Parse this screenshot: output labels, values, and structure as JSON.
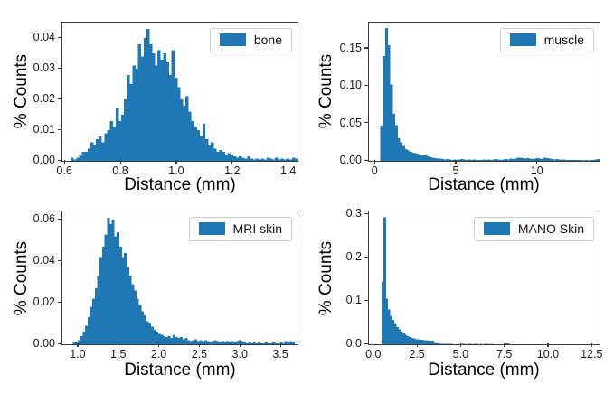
{
  "figure": {
    "background": "#ffffff",
    "bar_color": "#1f77b4",
    "layout": "2x2 histogram grid"
  },
  "chart_data": [
    {
      "type": "bar",
      "subtype": "histogram",
      "legend": "bone",
      "legend_position": "upper-right",
      "xlabel": "Distance (mm)",
      "ylabel": "% Counts",
      "grid": false,
      "xlim": [
        0.59,
        1.43
      ],
      "ylim": [
        0,
        0.045
      ],
      "xticks": [
        0.6,
        0.8,
        1.0,
        1.2,
        1.4
      ],
      "xtick_labels": [
        "0.6",
        "0.8",
        "1.0",
        "1.2",
        "1.4"
      ],
      "yticks": [
        0,
        0.01,
        0.02,
        0.03,
        0.04
      ],
      "ytick_labels": [
        "0.00",
        "0.01",
        "0.02",
        "0.03",
        "0.04"
      ],
      "bar_color": "#1f77b4",
      "bins": {
        "start": 0.62,
        "width": 0.01
      },
      "values": [
        0.001,
        0.0005,
        0.001,
        0.002,
        0.003,
        0.003,
        0.004,
        0.006,
        0.005,
        0.007,
        0.008,
        0.006,
        0.009,
        0.01,
        0.013,
        0.011,
        0.017,
        0.013,
        0.015,
        0.02,
        0.028,
        0.025,
        0.031,
        0.03,
        0.038,
        0.034,
        0.04,
        0.043,
        0.038,
        0.035,
        0.031,
        0.036,
        0.033,
        0.035,
        0.032,
        0.028,
        0.036,
        0.027,
        0.024,
        0.02,
        0.018,
        0.021,
        0.016,
        0.013,
        0.011,
        0.01,
        0.008,
        0.012,
        0.007,
        0.005,
        0.006,
        0.004,
        0.003,
        0.0035,
        0.003,
        0.002,
        0.0025,
        0.002,
        0.0015,
        0.001,
        0.0015,
        0.001,
        0.0008,
        0.0015,
        0.0008,
        0.0005,
        0.0008,
        0.0005,
        0.0008,
        0.0005,
        0.001,
        0.0008,
        0.0005,
        0.001,
        0.0005,
        0.0008,
        0.0005,
        0.0008,
        0.0005,
        0.001,
        0.0008
      ]
    },
    {
      "type": "bar",
      "subtype": "histogram",
      "legend": "muscle",
      "legend_position": "upper-right",
      "xlabel": "Distance (mm)",
      "ylabel": "% Counts",
      "grid": false,
      "xlim": [
        -0.4,
        13.8
      ],
      "ylim": [
        0,
        0.185
      ],
      "xticks": [
        0,
        5,
        10
      ],
      "xtick_labels": [
        "0",
        "5",
        "10"
      ],
      "yticks": [
        0,
        0.05,
        0.1,
        0.15
      ],
      "ytick_labels": [
        "0.00",
        "0.05",
        "0.10",
        "0.15"
      ],
      "bar_color": "#1f77b4",
      "bins": {
        "start": 0.3,
        "width": 0.15
      },
      "values": [
        0.047,
        0.14,
        0.178,
        0.155,
        0.102,
        0.063,
        0.048,
        0.03,
        0.025,
        0.02,
        0.016,
        0.014,
        0.012,
        0.011,
        0.01,
        0.009,
        0.008,
        0.0075,
        0.007,
        0.006,
        0.005,
        0.004,
        0.0035,
        0.003,
        0.003,
        0.0025,
        0.002,
        0.0025,
        0.002,
        0.0015,
        0.002,
        0.0015,
        0.002,
        0.0025,
        0.002,
        0.0015,
        0.002,
        0.0015,
        0.002,
        0.0015,
        0.001,
        0.0015,
        0.002,
        0.0015,
        0.002,
        0.0015,
        0.002,
        0.0025,
        0.002,
        0.0015,
        0.002,
        0.0025,
        0.002,
        0.003,
        0.0025,
        0.003,
        0.004,
        0.0045,
        0.0035,
        0.003,
        0.0035,
        0.003,
        0.0025,
        0.003,
        0.0035,
        0.003,
        0.0025,
        0.004,
        0.0035,
        0.003,
        0.0025,
        0.002,
        0.0025,
        0.002,
        0.0015,
        0.002,
        0.0015,
        0.001,
        0.0015,
        0.001,
        0.001,
        0.0015,
        0.001,
        0.0005,
        0.001,
        0.0005,
        0.001,
        0.0015,
        0.002,
        0.0025
      ]
    },
    {
      "type": "bar",
      "subtype": "histogram",
      "legend": "MRI skin",
      "legend_position": "upper-right",
      "xlabel": "Distance (mm)",
      "ylabel": "% Counts",
      "grid": false,
      "xlim": [
        0.8,
        3.7
      ],
      "ylim": [
        0,
        0.064
      ],
      "xticks": [
        1.0,
        1.5,
        2.0,
        2.5,
        3.0,
        3.5
      ],
      "xtick_labels": [
        "1.0",
        "1.5",
        "2.0",
        "2.5",
        "3.0",
        "3.5"
      ],
      "yticks": [
        0,
        0.02,
        0.04,
        0.06
      ],
      "ytick_labels": [
        "0.00",
        "0.02",
        "0.04",
        "0.06"
      ],
      "bar_color": "#1f77b4",
      "bins": {
        "start": 0.93,
        "width": 0.03
      },
      "values": [
        0.001,
        0.001,
        0.002,
        0.004,
        0.006,
        0.009,
        0.013,
        0.018,
        0.022,
        0.027,
        0.033,
        0.042,
        0.047,
        0.053,
        0.061,
        0.058,
        0.06,
        0.052,
        0.054,
        0.047,
        0.042,
        0.044,
        0.037,
        0.033,
        0.029,
        0.026,
        0.022,
        0.019,
        0.016,
        0.014,
        0.011,
        0.01,
        0.0085,
        0.007,
        0.006,
        0.005,
        0.0045,
        0.004,
        0.0035,
        0.004,
        0.003,
        0.0045,
        0.0035,
        0.003,
        0.0035,
        0.0025,
        0.003,
        0.002,
        0.0015,
        0.002,
        0.0025,
        0.0015,
        0.002,
        0.0015,
        0.002,
        0.0015,
        0.001,
        0.0015,
        0.002,
        0.0015,
        0.001,
        0.0015,
        0.001,
        0.0015,
        0.001,
        0.0015,
        0.001,
        0.0015,
        0.002,
        0.0015,
        0.001,
        0.0005,
        0.001,
        0.0005,
        0.001,
        0.0005,
        0.001,
        0.0005,
        0.0005,
        0.001,
        0.0005,
        0.0005,
        0.001,
        0.0005,
        0.0005,
        0.001,
        0.0005,
        0.0015,
        0.001,
        0.0015,
        0.001
      ]
    },
    {
      "type": "bar",
      "subtype": "histogram",
      "legend": "MANO Skin",
      "legend_position": "upper-right",
      "xlabel": "Distance (mm)",
      "ylabel": "% Counts",
      "grid": false,
      "xlim": [
        -0.3,
        12.9
      ],
      "ylim": [
        0,
        0.307
      ],
      "xticks": [
        0.0,
        2.5,
        5.0,
        7.5,
        10.0,
        12.5
      ],
      "xtick_labels": [
        "0.0",
        "2.5",
        "5.0",
        "7.5",
        "10.0",
        "12.5"
      ],
      "yticks": [
        0,
        0.1,
        0.2,
        0.3
      ],
      "ytick_labels": [
        "0.0",
        "0.1",
        "0.2",
        "0.3"
      ],
      "bar_color": "#1f77b4",
      "bins": {
        "start": 0.42,
        "width": 0.12
      },
      "values": [
        0.145,
        0.293,
        0.105,
        0.08,
        0.066,
        0.056,
        0.047,
        0.04,
        0.034,
        0.029,
        0.025,
        0.022,
        0.019,
        0.017,
        0.015,
        0.014,
        0.012,
        0.011,
        0.01,
        0.01,
        0.009,
        0.009,
        0.008,
        0.008,
        0.008,
        0.003,
        0.002,
        0.002,
        0.0015,
        0.001,
        0.001,
        0.0008,
        0.001,
        0.0008,
        0.0005,
        0,
        0.0008,
        0,
        0.001,
        0.0015,
        0,
        0.0015,
        0.001,
        0,
        0.0015,
        0.001,
        0,
        0.0015,
        0,
        0.001,
        0.0015,
        0,
        0.001,
        0,
        0,
        0,
        0,
        0,
        0,
        0.0025,
        0.002,
        0,
        0,
        0
      ]
    }
  ]
}
